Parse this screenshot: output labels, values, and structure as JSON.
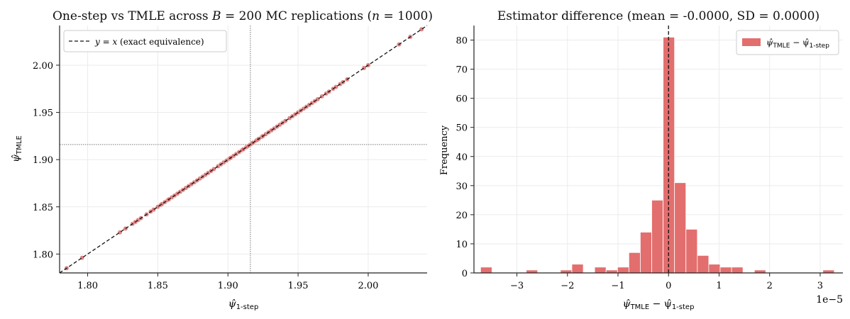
{
  "chart_data": [
    {
      "type": "scatter",
      "title_parts": {
        "pre": "One-step vs TMLE across ",
        "b_var": "B",
        "b_eq": " = 200 MC replications  (",
        "n_var": "n",
        "n_eq": " = 1000)"
      },
      "xlabel": {
        "base": "ψ̂",
        "sub": "1-step"
      },
      "ylabel": {
        "base": "ψ̂",
        "sub": "TMLE"
      },
      "xlim": [
        1.78,
        2.042
      ],
      "ylim": [
        1.78,
        2.042
      ],
      "xticks": [
        1.8,
        1.85,
        1.9,
        1.95,
        2.0
      ],
      "yticks": [
        1.8,
        1.85,
        1.9,
        1.95,
        2.0
      ],
      "reference_lines": {
        "x": 1.916,
        "y": 1.916
      },
      "legend": {
        "placement": "top-left",
        "var_label": "y = x",
        "text": "  (exact equivalence)"
      },
      "grid": true,
      "points": [
        1.785,
        1.796,
        1.823,
        1.827,
        1.832,
        1.834,
        1.836,
        1.838,
        1.842,
        1.845,
        1.847,
        1.85,
        1.852,
        1.853,
        1.855,
        1.857,
        1.858,
        1.86,
        1.862,
        1.864,
        1.866,
        1.868,
        1.87,
        1.872,
        1.874,
        1.876,
        1.878,
        1.88,
        1.882,
        1.884,
        1.886,
        1.888,
        1.89,
        1.893,
        1.895,
        1.897,
        1.899,
        1.901,
        1.902,
        1.904,
        1.906,
        1.908,
        1.91,
        1.911,
        1.913,
        1.914,
        1.915,
        1.916,
        1.917,
        1.918,
        1.92,
        1.921,
        1.922,
        1.924,
        1.925,
        1.927,
        1.929,
        1.931,
        1.933,
        1.935,
        1.937,
        1.939,
        1.941,
        1.944,
        1.946,
        1.948,
        1.95,
        1.952,
        1.954,
        1.956,
        1.958,
        1.96,
        1.962,
        1.964,
        1.967,
        1.97,
        1.972,
        1.975,
        1.977,
        1.98,
        1.982,
        1.985,
        1.997,
        2.0,
        2.022,
        2.03,
        2.038
      ]
    },
    {
      "type": "bar",
      "title": "Estimator difference  (mean = -0.0000,  SD = 0.0000)",
      "xlabel": {
        "part1": "ψ̂",
        "sub1": "TMLE",
        "mid": " − ψ̂",
        "sub2": "1-step"
      },
      "ylabel": "Frequency",
      "xlim": [
        -3.85,
        3.45
      ],
      "ylim": [
        0,
        85
      ],
      "xticks": [
        -3,
        -2,
        -1,
        0,
        1,
        2,
        3
      ],
      "yticks": [
        0,
        10,
        20,
        30,
        40,
        50,
        60,
        70,
        80
      ],
      "x_multiplier": "1e−5",
      "reference_line_x": 0,
      "legend": {
        "placement": "top-right",
        "label": {
          "part1": "ψ̂",
          "sub1": "TMLE",
          "mid": " − ψ̂",
          "sub2": "1-step"
        }
      },
      "grid": true,
      "color": "#e36e6e",
      "bin_width": 0.2257,
      "bins": [
        {
          "x": -3.606,
          "count": 2
        },
        {
          "x": -2.703,
          "count": 1
        },
        {
          "x": -2.026,
          "count": 1
        },
        {
          "x": -1.8,
          "count": 3
        },
        {
          "x": -1.349,
          "count": 2
        },
        {
          "x": -1.123,
          "count": 1
        },
        {
          "x": -0.897,
          "count": 2
        },
        {
          "x": -0.672,
          "count": 7
        },
        {
          "x": -0.446,
          "count": 14
        },
        {
          "x": -0.22,
          "count": 25
        },
        {
          "x": 0.006,
          "count": 81
        },
        {
          "x": 0.231,
          "count": 31
        },
        {
          "x": 0.457,
          "count": 15
        },
        {
          "x": 0.683,
          "count": 6
        },
        {
          "x": 0.908,
          "count": 3
        },
        {
          "x": 1.134,
          "count": 2
        },
        {
          "x": 1.36,
          "count": 2
        },
        {
          "x": 1.811,
          "count": 1
        },
        {
          "x": 3.166,
          "count": 1
        }
      ]
    }
  ]
}
